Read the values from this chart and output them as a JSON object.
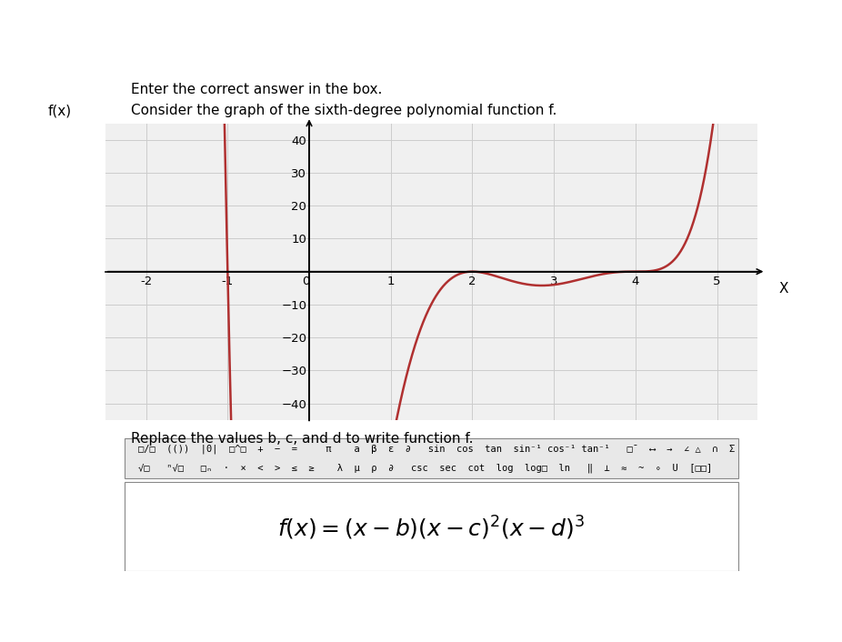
{
  "title_main": "Enter the correct answer in the box.",
  "title_sub": "Consider the graph of the sixth-degree polynomial function f.",
  "ylabel": "f(x)",
  "xlabel": "X",
  "b": -1,
  "c": 2,
  "d": 4,
  "xlim": [
    -2.5,
    5.5
  ],
  "ylim": [
    -45,
    45
  ],
  "xticks": [
    -2,
    -1,
    0,
    1,
    2,
    3,
    4,
    5
  ],
  "yticks": [
    -40,
    -30,
    -20,
    -10,
    10,
    20,
    30,
    40
  ],
  "curve_color": "#b03030",
  "curve_linewidth": 1.8,
  "grid_color": "#cccccc",
  "bg_color": "#f0f0f0",
  "formula_text": "f(x) = (x − b)(x − c)²(x − d)³",
  "formula_box_text": "f(x)=(x-b)(x-c)^2(x-d)^3",
  "answer_b": -1,
  "answer_c": 2,
  "answer_d": 4,
  "instruction_text": "Replace the values b, c, and d to write function f."
}
